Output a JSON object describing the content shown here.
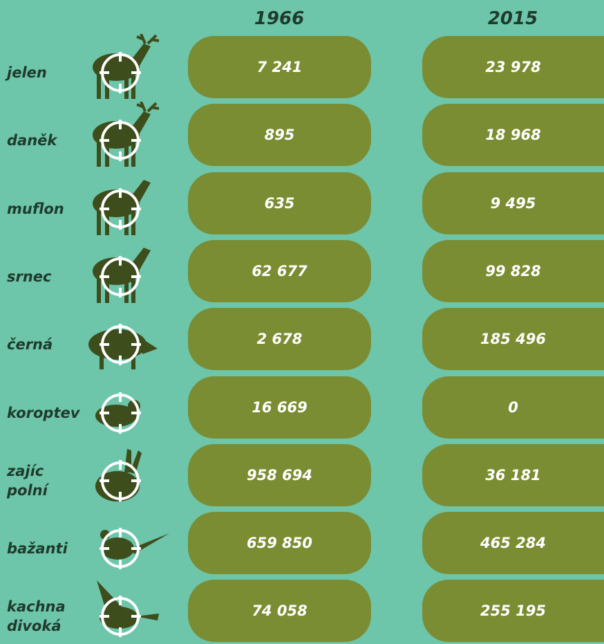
{
  "table": {
    "header": [
      "1966",
      "2015"
    ],
    "rows": [
      {
        "label": [
          "jelen"
        ],
        "values": [
          "7 241",
          "23 978"
        ]
      },
      {
        "label": [
          "daněk"
        ],
        "values": [
          "895",
          "18 968"
        ]
      },
      {
        "label": [
          "muflon"
        ],
        "values": [
          "635",
          "9 495"
        ]
      },
      {
        "label": [
          "srnec"
        ],
        "values": [
          "62 677",
          "99 828"
        ]
      },
      {
        "label": [
          "černá"
        ],
        "values": [
          "2 678",
          "185 496"
        ]
      },
      {
        "label": [
          "koroptev"
        ],
        "values": [
          "16 669",
          "0"
        ]
      },
      {
        "label": [
          "zajíc",
          "polní"
        ],
        "values": [
          "958 694",
          "36 181"
        ]
      },
      {
        "label": [
          "bažanti"
        ],
        "values": [
          "659 850",
          "465 284"
        ]
      },
      {
        "label": [
          "kachna",
          "divoká"
        ],
        "values": [
          "74 058",
          "255 195"
        ]
      }
    ]
  }
}
